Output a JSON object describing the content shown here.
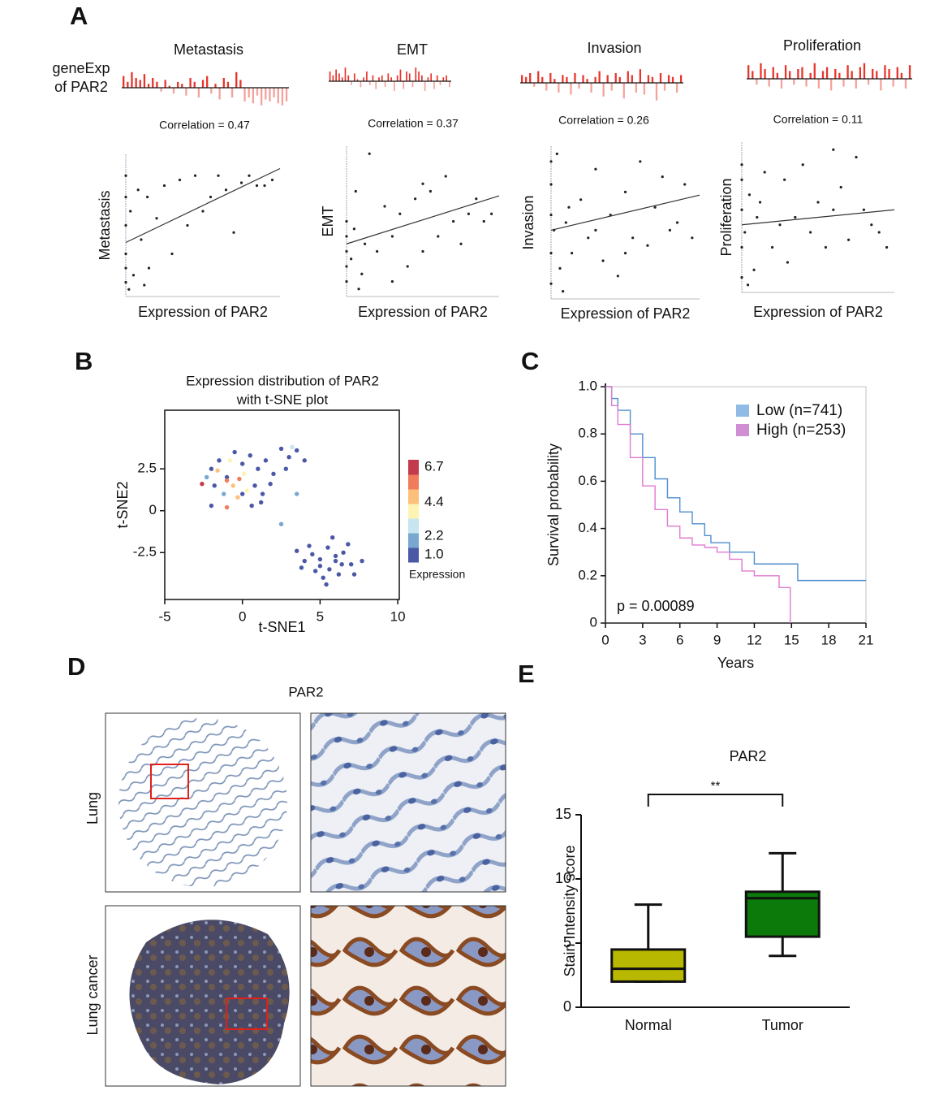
{
  "panel_labels": [
    "A",
    "B",
    "C",
    "D",
    "E"
  ],
  "strip_label": [
    "geneExp",
    "of PAR2"
  ],
  "histology": {
    "title": "PAR2",
    "rows": [
      "Lung",
      "Lung cancer"
    ]
  },
  "chart_data": [
    {
      "type": "scatter",
      "title": "Metastasis",
      "correlation": "Correlation = 0.47",
      "strip": [
        0.6,
        0.3,
        0.8,
        0.5,
        0.4,
        0.7,
        0.2,
        0.5,
        0.3,
        -0.2,
        0.4,
        0.1,
        -0.3,
        0.3,
        0.2,
        -0.4,
        0.5,
        0.3,
        -0.5,
        0.4,
        0.6,
        -0.3,
        0.2,
        -0.6,
        0.5,
        0.3,
        -0.5,
        0.8,
        0.4,
        -0.7,
        -0.5,
        -0.8,
        -0.4,
        -0.9,
        -0.6,
        -0.7,
        -0.5,
        -0.8,
        -0.9,
        -0.7
      ],
      "strip_ylim": [
        -1,
        1
      ],
      "strip_colors": [
        "#e8342a",
        "#f4a29b"
      ],
      "x": [
        0,
        0,
        0,
        0,
        0,
        0,
        0.03,
        0.05,
        0.08,
        0.1,
        0.12,
        0.14,
        0.2,
        0.25,
        0.3,
        0.35,
        0.4,
        0.45,
        0.5,
        0.55,
        0.6,
        0.65,
        0.7,
        0.75,
        0.8,
        0.85,
        0.9,
        0.95,
        0.02,
        0.15
      ],
      "y": [
        0.1,
        0.3,
        0.5,
        0.7,
        0.85,
        0.2,
        0.6,
        0.15,
        0.75,
        0.4,
        0.08,
        0.7,
        0.55,
        0.78,
        0.3,
        0.82,
        0.5,
        0.85,
        0.6,
        0.7,
        0.85,
        0.75,
        0.45,
        0.8,
        0.85,
        0.78,
        0.78,
        0.82,
        0.05,
        0.2
      ],
      "trend": [
        0.38,
        0.9
      ],
      "xlim": [
        0,
        1
      ],
      "ylim": [
        0,
        1
      ],
      "color": "#222222",
      "xlabel": "Expression of PAR2",
      "ylabel": "Metastasis"
    },
    {
      "type": "scatter",
      "title": "EMT",
      "correlation": "Correlation = 0.37",
      "strip": [
        0.5,
        0.3,
        0.6,
        0.4,
        0.2,
        0.7,
        0.3,
        -0.2,
        0.4,
        0.1,
        -0.3,
        0.2,
        0.5,
        -0.2,
        0.3,
        -0.4,
        0.2,
        0.3,
        -0.3,
        0.4,
        0.2,
        -0.5,
        0.3,
        0.6,
        -0.4,
        0.5,
        0.4,
        -0.3,
        0.7,
        0.5,
        0.3,
        -0.5,
        0.2,
        0.4,
        -0.4,
        0.3,
        -0.2,
        0.2,
        0.3,
        -0.3
      ],
      "strip_ylim": [
        -1,
        1
      ],
      "strip_colors": [
        "#e8342a",
        "#f4a29b"
      ],
      "x": [
        0,
        0,
        0,
        0,
        0,
        0.03,
        0.06,
        0.1,
        0.12,
        0.15,
        0.2,
        0.25,
        0.3,
        0.35,
        0.4,
        0.45,
        0.5,
        0.55,
        0.6,
        0.65,
        0.7,
        0.75,
        0.8,
        0.85,
        0.9,
        0.95,
        0.08,
        0.05,
        0.3,
        0.5
      ],
      "y": [
        0.1,
        0.3,
        0.5,
        0.2,
        0.4,
        0.25,
        0.7,
        0.15,
        0.35,
        0.95,
        0.3,
        0.6,
        0.1,
        0.55,
        0.2,
        0.65,
        0.3,
        0.7,
        0.4,
        0.8,
        0.5,
        0.35,
        0.55,
        0.65,
        0.5,
        0.55,
        0.05,
        0.45,
        0.4,
        0.75
      ],
      "trend": [
        0.35,
        0.67
      ],
      "xlim": [
        0,
        1
      ],
      "ylim": [
        0,
        1
      ],
      "color": "#222222",
      "xlabel": "Expression of PAR2",
      "ylabel": "EMT"
    },
    {
      "type": "scatter",
      "title": "Invasion",
      "correlation": "Correlation = 0.26",
      "strip": [
        0.4,
        0.3,
        0.5,
        -0.2,
        0.6,
        0.3,
        -0.4,
        0.5,
        0.2,
        -0.5,
        0.4,
        0.3,
        -0.6,
        0.5,
        -0.3,
        0.4,
        0.2,
        -0.5,
        0.3,
        0.6,
        -0.7,
        0.4,
        -0.4,
        0.5,
        0.3,
        -0.8,
        0.6,
        0.4,
        -0.5,
        0.7,
        -0.6,
        0.4,
        0.3,
        -0.9,
        0.5,
        -0.4,
        0.4,
        0.3,
        -0.5,
        0.4
      ],
      "strip_ylim": [
        -1,
        1
      ],
      "strip_colors": [
        "#e8342a",
        "#f4a29b"
      ],
      "x": [
        0,
        0,
        0,
        0,
        0,
        0.02,
        0.04,
        0.06,
        0.1,
        0.14,
        0.2,
        0.25,
        0.3,
        0.35,
        0.4,
        0.45,
        0.5,
        0.55,
        0.6,
        0.65,
        0.7,
        0.75,
        0.8,
        0.85,
        0.9,
        0.95,
        0.08,
        0.12,
        0.3,
        0.5
      ],
      "y": [
        0.1,
        0.3,
        0.55,
        0.75,
        0.9,
        0.45,
        0.95,
        0.2,
        0.5,
        0.3,
        0.65,
        0.4,
        0.85,
        0.25,
        0.55,
        0.15,
        0.7,
        0.4,
        0.9,
        0.35,
        0.6,
        0.8,
        0.45,
        0.5,
        0.75,
        0.4,
        0.05,
        0.6,
        0.45,
        0.3
      ],
      "trend": [
        0.45,
        0.68
      ],
      "xlim": [
        0,
        1
      ],
      "ylim": [
        0,
        1
      ],
      "color": "#222222",
      "xlabel": "Expression of PAR2",
      "ylabel": "Invasion"
    },
    {
      "type": "scatter",
      "title": "Proliferation",
      "correlation": "Correlation = 0.11",
      "strip": [
        0.7,
        0.4,
        -0.3,
        0.8,
        0.5,
        -0.4,
        0.6,
        0.3,
        -0.5,
        0.7,
        0.4,
        -0.3,
        0.5,
        0.6,
        -0.4,
        0.3,
        0.8,
        -0.5,
        0.4,
        0.6,
        -0.6,
        0.5,
        0.3,
        -0.4,
        0.7,
        0.4,
        -0.5,
        0.6,
        0.8,
        -0.3,
        0.5,
        0.4,
        -0.6,
        0.7,
        0.5,
        -0.4,
        0.6,
        0.3,
        -0.5,
        0.7
      ],
      "strip_ylim": [
        -1,
        1
      ],
      "strip_colors": [
        "#e8342a",
        "#f4a29b"
      ],
      "x": [
        0,
        0,
        0,
        0,
        0,
        0.02,
        0.05,
        0.08,
        0.1,
        0.15,
        0.2,
        0.25,
        0.3,
        0.35,
        0.4,
        0.45,
        0.5,
        0.55,
        0.6,
        0.65,
        0.7,
        0.75,
        0.8,
        0.85,
        0.9,
        0.95,
        0.04,
        0.12,
        0.28,
        0.6
      ],
      "y": [
        0.1,
        0.3,
        0.55,
        0.75,
        0.85,
        0.4,
        0.65,
        0.15,
        0.5,
        0.8,
        0.3,
        0.45,
        0.2,
        0.5,
        0.85,
        0.4,
        0.6,
        0.3,
        0.55,
        0.7,
        0.35,
        0.9,
        0.55,
        0.45,
        0.4,
        0.3,
        0.05,
        0.6,
        0.75,
        0.95
      ],
      "trend": [
        0.45,
        0.55
      ],
      "xlim": [
        0,
        1
      ],
      "ylim": [
        0,
        1
      ],
      "color": "#222222",
      "xlabel": "Expression of PAR2",
      "ylabel": "Proliferation"
    },
    {
      "type": "scatter",
      "title": "Expression distribution of PAR2",
      "subtitle": "with t-SNE plot",
      "x": [
        -2.6,
        -2,
        -1.5,
        -1,
        -0.5,
        0,
        0.5,
        1,
        1.5,
        2,
        2.5,
        3,
        3.5,
        4,
        2.8,
        -1.8,
        -1.2,
        -0.6,
        -0.2,
        -1,
        0.3,
        0.8,
        1.3,
        -2,
        -1,
        0.6,
        1.2,
        -0.3,
        0.1,
        -2.3,
        3.5,
        2.5,
        3.2,
        -1.6,
        0,
        1.8,
        -0.8,
        4,
        4.5,
        5,
        5.5,
        6,
        6.5,
        7,
        5.2,
        6.2,
        4.7,
        5.8,
        6.8,
        7.7,
        3.5,
        3.8,
        5,
        5.6,
        6.4,
        4.3,
        7.2,
        5.4,
        6
      ],
      "y": [
        1.6,
        2.5,
        3,
        2,
        3.5,
        2.8,
        3.3,
        2.5,
        3,
        2.2,
        3.7,
        3.2,
        3.6,
        3,
        2.5,
        1.5,
        1,
        1.5,
        1.9,
        1.8,
        1.2,
        1.5,
        1,
        0.3,
        0.2,
        0.3,
        0.5,
        0.8,
        2.2,
        2,
        1,
        -0.8,
        3.8,
        2.4,
        1,
        1.6,
        3,
        -3,
        -2.6,
        -3.3,
        -2.2,
        -3,
        -2.5,
        -3.2,
        -4,
        -3.8,
        -3.6,
        -1.6,
        -2,
        -3,
        -2.4,
        -3.4,
        -2.9,
        -3.5,
        -3.2,
        -2.1,
        -3.8,
        -4.4,
        -2.7
      ],
      "color_values": [
        6.7,
        1.2,
        1,
        1.3,
        1,
        1.1,
        1,
        1.2,
        1,
        1,
        1,
        1,
        1,
        1,
        1,
        1,
        1.5,
        4.4,
        6,
        5.5,
        4,
        1,
        1,
        1,
        5.5,
        1,
        1.3,
        4.5,
        3.5,
        2,
        1.5,
        2.2,
        2.5,
        5,
        1,
        1,
        3.8,
        1,
        1,
        1,
        1,
        1,
        1,
        1,
        1,
        1,
        1,
        1,
        1,
        1,
        1,
        1,
        1,
        1,
        1.2,
        1,
        1,
        1,
        1
      ],
      "colormap": [
        "#4a58a6",
        "#78a7cf",
        "#c6e5ee",
        "#fdf4b4",
        "#fdc07b",
        "#f07c5b",
        "#c43a4d"
      ],
      "clim": [
        1,
        6.7
      ],
      "colorbar_ticks": [
        {
          "value": 6.7,
          "label": "6.7"
        },
        {
          "value": 4.4,
          "label": "4.4"
        },
        {
          "value": 2.2,
          "label": "2.2"
        },
        {
          "value": 1,
          "label": "1.0"
        }
      ],
      "colorbar_label": "Expression",
      "xlim": [
        -5,
        10.1
      ],
      "ylim": [
        -5.3,
        6
      ],
      "xticks": [
        -5,
        0,
        5,
        10
      ],
      "yticks": [
        -2.5,
        0,
        2.5
      ],
      "xlabel": "t-SNE1",
      "ylabel": "t-SNE2"
    },
    {
      "type": "line",
      "step": "post",
      "series": [
        {
          "name": "Low (n=741)",
          "color": "#4f8fcf",
          "legend_color": "#8fbbe6",
          "x": [
            0,
            0.5,
            1,
            2,
            3,
            4,
            5,
            6,
            7,
            8,
            8.5,
            9,
            10,
            11,
            12,
            13,
            15.5,
            21
          ],
          "values": [
            1,
            0.95,
            0.9,
            0.8,
            0.7,
            0.61,
            0.53,
            0.47,
            0.42,
            0.37,
            0.34,
            0.34,
            0.3,
            0.3,
            0.25,
            0.25,
            0.18,
            0.18
          ]
        },
        {
          "name": "High (n=253)",
          "color": "#e07ad0",
          "legend_color": "#d18fd3",
          "x": [
            0,
            0.5,
            1,
            2,
            3,
            4,
            5,
            6,
            7,
            8,
            9,
            10,
            11,
            12,
            13,
            14,
            14.8,
            14.9
          ],
          "values": [
            1,
            0.92,
            0.84,
            0.7,
            0.58,
            0.48,
            0.41,
            0.36,
            0.33,
            0.32,
            0.3,
            0.27,
            0.22,
            0.2,
            0.2,
            0.15,
            0.15,
            0
          ]
        }
      ],
      "annotation": "p = 0.00089",
      "xlim": [
        0,
        21
      ],
      "ylim": [
        0,
        1
      ],
      "xticks": [
        0,
        3,
        6,
        9,
        12,
        15,
        18,
        21
      ],
      "yticks": [
        0,
        0.2,
        0.4,
        0.6,
        0.8,
        {
          "value": 1,
          "label": "1.0"
        }
      ],
      "xlabel": "Years",
      "ylabel": "Survival probability",
      "legend": "top-right"
    },
    {
      "type": "box",
      "title": "PAR2",
      "categories": [
        "Normal",
        "Tumor"
      ],
      "min": [
        2,
        4
      ],
      "q1": [
        2,
        5.5
      ],
      "median": [
        3,
        8.5
      ],
      "q3": [
        4.5,
        9
      ],
      "max": [
        8,
        12
      ],
      "colors": [
        "#b8b800",
        "#0b7a0b"
      ],
      "annotation": "**",
      "ylim": [
        0,
        15
      ],
      "yticks": [
        0,
        5,
        10,
        15
      ],
      "ylabel": "Stain Intensity score"
    }
  ]
}
